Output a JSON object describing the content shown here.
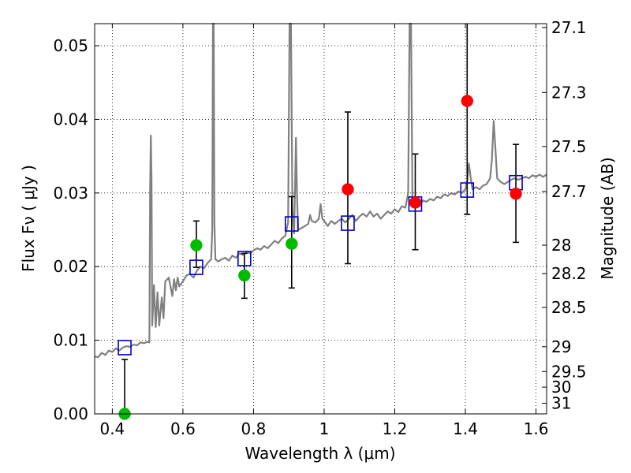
{
  "chart_data": {
    "type": "scatter",
    "xlabel": "Wavelength  λ (μm)",
    "ylabel": "Flux  Fν  ( μJy )",
    "y2label": "Magnitude (AB)",
    "xlim": [
      0.35,
      1.63
    ],
    "ylim": [
      0.0,
      0.053
    ],
    "grid": true,
    "x_ticks": [
      {
        "value": 0.4,
        "label": "0.4"
      },
      {
        "value": 0.6,
        "label": "0.6"
      },
      {
        "value": 0.8,
        "label": "0.8"
      },
      {
        "value": 1.0,
        "label": "1"
      },
      {
        "value": 1.2,
        "label": "1.2"
      },
      {
        "value": 1.4,
        "label": "1.4"
      },
      {
        "value": 1.6,
        "label": "1.6"
      }
    ],
    "y_ticks": [
      {
        "value": 0.0,
        "label": "0.00"
      },
      {
        "value": 0.01,
        "label": "0.01"
      },
      {
        "value": 0.02,
        "label": "0.02"
      },
      {
        "value": 0.03,
        "label": "0.03"
      },
      {
        "value": 0.04,
        "label": "0.04"
      },
      {
        "value": 0.05,
        "label": "0.05"
      }
    ],
    "y2_ticks": [
      {
        "value": 27.1,
        "label": "27.1"
      },
      {
        "value": 27.3,
        "label": "27.3"
      },
      {
        "value": 27.5,
        "label": "27.5"
      },
      {
        "value": 27.7,
        "label": "27.7"
      },
      {
        "value": 28.0,
        "label": "28"
      },
      {
        "value": 28.2,
        "label": "28.2"
      },
      {
        "value": 28.5,
        "label": "28.5"
      },
      {
        "value": 29.0,
        "label": "29"
      },
      {
        "value": 29.5,
        "label": "29.5"
      },
      {
        "value": 30.0,
        "label": "30"
      },
      {
        "value": 31.0,
        "label": "31"
      }
    ],
    "spectrum": {
      "color": "#808080",
      "points": [
        [
          0.35,
          0.0078
        ],
        [
          0.36,
          0.0077
        ],
        [
          0.37,
          0.0083
        ],
        [
          0.38,
          0.008
        ],
        [
          0.39,
          0.0086
        ],
        [
          0.4,
          0.0084
        ],
        [
          0.41,
          0.0089
        ],
        [
          0.42,
          0.0086
        ],
        [
          0.43,
          0.009
        ],
        [
          0.44,
          0.0092
        ],
        [
          0.45,
          0.0091
        ],
        [
          0.46,
          0.0094
        ],
        [
          0.47,
          0.0093
        ],
        [
          0.48,
          0.0097
        ],
        [
          0.49,
          0.0096
        ],
        [
          0.5,
          0.0098
        ],
        [
          0.505,
          0.0097
        ],
        [
          0.507,
          0.03
        ],
        [
          0.509,
          0.0378
        ],
        [
          0.511,
          0.032
        ],
        [
          0.513,
          0.012
        ],
        [
          0.518,
          0.0175
        ],
        [
          0.523,
          0.0118
        ],
        [
          0.528,
          0.0165
        ],
        [
          0.533,
          0.012
        ],
        [
          0.54,
          0.0158
        ],
        [
          0.545,
          0.013
        ],
        [
          0.55,
          0.018
        ],
        [
          0.56,
          0.0185
        ],
        [
          0.57,
          0.016
        ],
        [
          0.575,
          0.0183
        ],
        [
          0.58,
          0.0168
        ],
        [
          0.585,
          0.0185
        ],
        [
          0.59,
          0.0173
        ],
        [
          0.6,
          0.018
        ],
        [
          0.61,
          0.0188
        ],
        [
          0.62,
          0.019
        ],
        [
          0.63,
          0.0185
        ],
        [
          0.64,
          0.0195
        ],
        [
          0.65,
          0.02
        ],
        [
          0.66,
          0.0198
        ],
        [
          0.67,
          0.0205
        ],
        [
          0.68,
          0.021
        ],
        [
          0.683,
          0.025
        ],
        [
          0.685,
          0.053
        ],
        [
          0.687,
          0.053
        ],
        [
          0.689,
          0.026
        ],
        [
          0.692,
          0.021
        ],
        [
          0.7,
          0.0207
        ],
        [
          0.71,
          0.021
        ],
        [
          0.72,
          0.0212
        ],
        [
          0.73,
          0.0208
        ],
        [
          0.74,
          0.0215
        ],
        [
          0.75,
          0.0212
        ],
        [
          0.76,
          0.0218
        ],
        [
          0.77,
          0.0216
        ],
        [
          0.78,
          0.022
        ],
        [
          0.79,
          0.0218
        ],
        [
          0.8,
          0.0222
        ],
        [
          0.81,
          0.0225
        ],
        [
          0.82,
          0.0223
        ],
        [
          0.83,
          0.0228
        ],
        [
          0.84,
          0.0225
        ],
        [
          0.85,
          0.023
        ],
        [
          0.86,
          0.0235
        ],
        [
          0.87,
          0.0232
        ],
        [
          0.88,
          0.0238
        ],
        [
          0.89,
          0.0242
        ],
        [
          0.898,
          0.026
        ],
        [
          0.902,
          0.053
        ],
        [
          0.906,
          0.053
        ],
        [
          0.91,
          0.028
        ],
        [
          0.915,
          0.0245
        ],
        [
          0.918,
          0.032
        ],
        [
          0.92,
          0.0375
        ],
        [
          0.923,
          0.03
        ],
        [
          0.926,
          0.025
        ],
        [
          0.935,
          0.0252
        ],
        [
          0.945,
          0.0255
        ],
        [
          0.955,
          0.0258
        ],
        [
          0.96,
          0.027
        ],
        [
          0.965,
          0.0262
        ],
        [
          0.975,
          0.026
        ],
        [
          0.985,
          0.0265
        ],
        [
          0.99,
          0.0285
        ],
        [
          0.995,
          0.0265
        ],
        [
          1.0,
          0.0262
        ],
        [
          1.01,
          0.0255
        ],
        [
          1.02,
          0.0262
        ],
        [
          1.03,
          0.0258
        ],
        [
          1.04,
          0.0262
        ],
        [
          1.05,
          0.0265
        ],
        [
          1.06,
          0.026
        ],
        [
          1.07,
          0.0265
        ],
        [
          1.08,
          0.027
        ],
        [
          1.09,
          0.0262
        ],
        [
          1.1,
          0.0268
        ],
        [
          1.11,
          0.0272
        ],
        [
          1.12,
          0.0268
        ],
        [
          1.13,
          0.0275
        ],
        [
          1.14,
          0.0268
        ],
        [
          1.15,
          0.0272
        ],
        [
          1.16,
          0.0265
        ],
        [
          1.17,
          0.027
        ],
        [
          1.18,
          0.0275
        ],
        [
          1.19,
          0.0272
        ],
        [
          1.2,
          0.0278
        ],
        [
          1.21,
          0.0274
        ],
        [
          1.22,
          0.0282
        ],
        [
          1.23,
          0.028
        ],
        [
          1.238,
          0.03
        ],
        [
          1.242,
          0.053
        ],
        [
          1.246,
          0.053
        ],
        [
          1.25,
          0.029
        ],
        [
          1.26,
          0.0285
        ],
        [
          1.27,
          0.0282
        ],
        [
          1.28,
          0.029
        ],
        [
          1.29,
          0.0288
        ],
        [
          1.3,
          0.0292
        ],
        [
          1.31,
          0.029
        ],
        [
          1.32,
          0.0295
        ],
        [
          1.33,
          0.0293
        ],
        [
          1.34,
          0.0298
        ],
        [
          1.35,
          0.0296
        ],
        [
          1.36,
          0.03
        ],
        [
          1.37,
          0.0298
        ],
        [
          1.38,
          0.0302
        ],
        [
          1.39,
          0.03
        ],
        [
          1.4,
          0.0305
        ],
        [
          1.405,
          0.0315
        ],
        [
          1.41,
          0.034
        ],
        [
          1.415,
          0.032
        ],
        [
          1.42,
          0.0305
        ],
        [
          1.43,
          0.0308
        ],
        [
          1.44,
          0.0305
        ],
        [
          1.45,
          0.031
        ],
        [
          1.46,
          0.0312
        ],
        [
          1.47,
          0.032
        ],
        [
          1.475,
          0.0345
        ],
        [
          1.48,
          0.0398
        ],
        [
          1.485,
          0.036
        ],
        [
          1.49,
          0.032
        ],
        [
          1.5,
          0.0315
        ],
        [
          1.51,
          0.0312
        ],
        [
          1.52,
          0.0315
        ],
        [
          1.53,
          0.0318
        ],
        [
          1.54,
          0.032
        ],
        [
          1.55,
          0.0318
        ],
        [
          1.56,
          0.032
        ],
        [
          1.57,
          0.0322
        ],
        [
          1.58,
          0.032
        ],
        [
          1.59,
          0.0324
        ],
        [
          1.6,
          0.0322
        ],
        [
          1.61,
          0.0325
        ],
        [
          1.62,
          0.0322
        ],
        [
          1.63,
          0.0325
        ]
      ]
    },
    "model_bands": {
      "marker": "open-square",
      "color": "#0000cc",
      "points": [
        {
          "x": 0.435,
          "y": 0.009
        },
        {
          "x": 0.638,
          "y": 0.0199
        },
        {
          "x": 0.774,
          "y": 0.0211
        },
        {
          "x": 0.908,
          "y": 0.0258
        },
        {
          "x": 1.067,
          "y": 0.0259
        },
        {
          "x": 1.258,
          "y": 0.0285
        },
        {
          "x": 1.405,
          "y": 0.0304
        },
        {
          "x": 1.543,
          "y": 0.0314
        }
      ]
    },
    "observed_optical": {
      "marker": "filled-circle",
      "color": "#00bb00",
      "points": [
        {
          "x": 0.435,
          "y": 0.0,
          "err_low": 0.0,
          "err_high": 0.0074
        },
        {
          "x": 0.638,
          "y": 0.0229,
          "err_low": 0.0199,
          "err_high": 0.0262
        },
        {
          "x": 0.774,
          "y": 0.0188,
          "err_low": 0.0157,
          "err_high": 0.0218
        },
        {
          "x": 0.908,
          "y": 0.0231,
          "err_low": 0.0171,
          "err_high": 0.0295
        }
      ]
    },
    "observed_ir": {
      "marker": "filled-circle",
      "color": "#ff0000",
      "points": [
        {
          "x": 1.067,
          "y": 0.0305,
          "err_low": 0.0204,
          "err_high": 0.041
        },
        {
          "x": 1.258,
          "y": 0.0287,
          "err_low": 0.0223,
          "err_high": 0.0353
        },
        {
          "x": 1.405,
          "y": 0.0425,
          "err_low": 0.0271,
          "err_high": 0.053
        },
        {
          "x": 1.543,
          "y": 0.0299,
          "err_low": 0.0233,
          "err_high": 0.0366
        }
      ]
    }
  }
}
